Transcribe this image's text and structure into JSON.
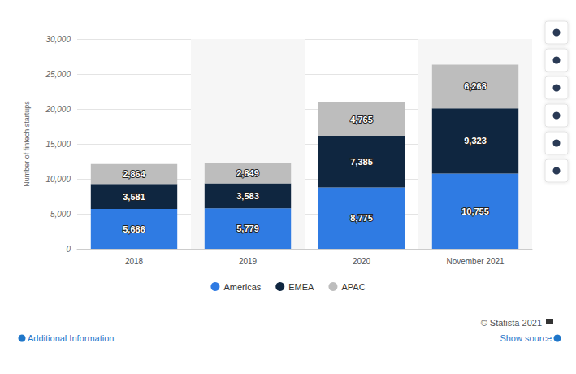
{
  "chart_data": {
    "type": "bar",
    "stacked": true,
    "data_labels": true,
    "grid": true,
    "legend": "bottom",
    "y_label": "Number of fintech startups",
    "categories": [
      "2018",
      "2019",
      "2020",
      "November 2021"
    ],
    "series": [
      {
        "name": "Americas",
        "color": "#2f7be3",
        "values": [
          5686,
          5779,
          8775,
          10755
        ],
        "value_labels": [
          "5,686",
          "5,779",
          "8,775",
          "10,755"
        ]
      },
      {
        "name": "EMEA",
        "color": "#0f2640",
        "values": [
          3581,
          3583,
          7385,
          9323
        ],
        "value_labels": [
          "3,581",
          "3,583",
          "7,385",
          "9,323"
        ]
      },
      {
        "name": "APAC",
        "color": "#bdbdbd",
        "values": [
          2864,
          2849,
          4765,
          6268
        ],
        "value_labels": [
          "2,864",
          "2,849",
          "4,765",
          "6,268"
        ]
      }
    ],
    "ylim": [
      0,
      30000
    ],
    "yticks": [
      0,
      {
        "value": 5000,
        "label": "5,000"
      },
      {
        "value": 10000,
        "label": "10,000"
      },
      {
        "value": 15000,
        "label": "15,000"
      },
      {
        "value": 20000,
        "label": "20,000"
      },
      {
        "value": 25000,
        "label": "25,000"
      },
      {
        "value": 30000,
        "label": "30,000"
      }
    ],
    "annotations": [
      "© Statista 2021",
      "Additional Information",
      "Show source"
    ]
  }
}
